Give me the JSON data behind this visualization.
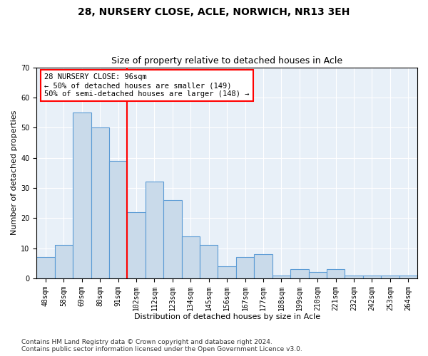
{
  "title": "28, NURSERY CLOSE, ACLE, NORWICH, NR13 3EH",
  "subtitle": "Size of property relative to detached houses in Acle",
  "xlabel": "Distribution of detached houses by size in Acle",
  "ylabel": "Number of detached properties",
  "categories": [
    "48sqm",
    "58sqm",
    "69sqm",
    "80sqm",
    "91sqm",
    "102sqm",
    "112sqm",
    "123sqm",
    "134sqm",
    "145sqm",
    "156sqm",
    "167sqm",
    "177sqm",
    "188sqm",
    "199sqm",
    "210sqm",
    "221sqm",
    "232sqm",
    "242sqm",
    "253sqm",
    "264sqm"
  ],
  "values": [
    7,
    11,
    55,
    50,
    39,
    22,
    32,
    26,
    14,
    11,
    4,
    7,
    8,
    1,
    3,
    2,
    3,
    1,
    1,
    1,
    1
  ],
  "bar_color": "#c9daea",
  "bar_edge_color": "#5b9bd5",
  "vline_x": 4.5,
  "vline_color": "red",
  "annotation_text": "28 NURSERY CLOSE: 96sqm\n← 50% of detached houses are smaller (149)\n50% of semi-detached houses are larger (148) →",
  "annotation_box_color": "white",
  "annotation_box_edge_color": "red",
  "ylim": [
    0,
    70
  ],
  "yticks": [
    0,
    10,
    20,
    30,
    40,
    50,
    60,
    70
  ],
  "plot_background": "#e8f0f8",
  "footer_line1": "Contains HM Land Registry data © Crown copyright and database right 2024.",
  "footer_line2": "Contains public sector information licensed under the Open Government Licence v3.0.",
  "title_fontsize": 10,
  "subtitle_fontsize": 9,
  "xlabel_fontsize": 8,
  "ylabel_fontsize": 8,
  "tick_fontsize": 7,
  "annotation_fontsize": 7.5,
  "footer_fontsize": 6.5
}
